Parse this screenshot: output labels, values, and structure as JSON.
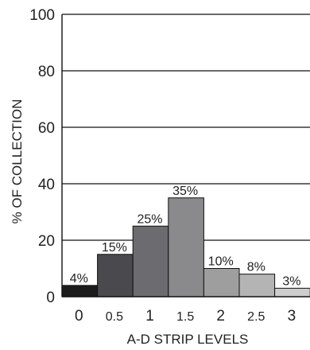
{
  "chart_data": {
    "type": "bar",
    "title": "",
    "xlabel": "A-D STRIP LEVELS",
    "ylabel": "% OF COLLECTION",
    "ylim": [
      0,
      100
    ],
    "yticks": [
      "0",
      "20",
      "40",
      "60",
      "80",
      "100"
    ],
    "grid": "horizontal",
    "categories": [
      "0",
      "0.5",
      "1",
      "1.5",
      "2",
      "2.5",
      "3"
    ],
    "values": [
      4,
      15,
      25,
      35,
      10,
      8,
      3
    ],
    "data_labels": [
      "4%",
      "15%",
      "25%",
      "35%",
      "10%",
      "8%",
      "3%"
    ],
    "colors": [
      "#1c1c1c",
      "#4a4a4e",
      "#6b6b70",
      "#8a8a8d",
      "#9e9e9e",
      "#b4b4b4",
      "#cdcdcd"
    ]
  }
}
